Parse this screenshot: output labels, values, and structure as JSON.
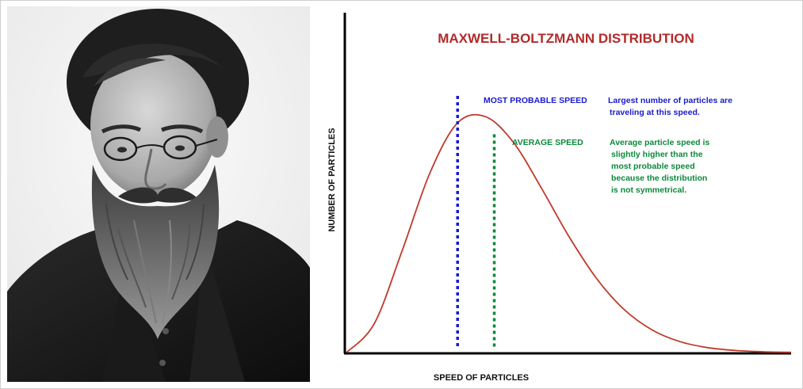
{
  "portrait": {
    "description_icon": "portrait-photo"
  },
  "chart_data": {
    "type": "line",
    "title": "MAXWELL-BOLTZMANN DISTRIBUTION",
    "xlabel": "SPEED OF PARTICLES",
    "ylabel": "NUMBER OF PARTICLES",
    "grid": false,
    "x": [
      0,
      0.25,
      0.5,
      0.75,
      1.0,
      1.25,
      1.5,
      1.75,
      2.0,
      2.25,
      2.5,
      2.75,
      3.0,
      3.25,
      3.5,
      3.75,
      4.0
    ],
    "series": [
      {
        "values": [
          0,
          0.111,
          0.39,
          0.69,
          0.884,
          0.908,
          0.81,
          0.636,
          0.448,
          0.285,
          0.165,
          0.087,
          0.042,
          0.019,
          0.008,
          0.003,
          0.001
        ],
        "color": "#c0392b"
      }
    ],
    "xlim": [
      0,
      4.0
    ],
    "ylim": [
      0,
      1.0
    ],
    "annotations": [
      {
        "type": "vline",
        "x": 1.0,
        "color": "#1a1acc",
        "label": "MOST PROBABLE SPEED",
        "note": [
          "Largest number of particles are",
          "traveling at this speed."
        ]
      },
      {
        "type": "vline",
        "x": 1.33,
        "color": "#0a8a3a",
        "label": "AVERAGE SPEED",
        "note": [
          "Average particle speed is",
          "slightly higher than the",
          "most probable speed",
          "because the distribution",
          "is not symmetrical."
        ]
      }
    ]
  }
}
